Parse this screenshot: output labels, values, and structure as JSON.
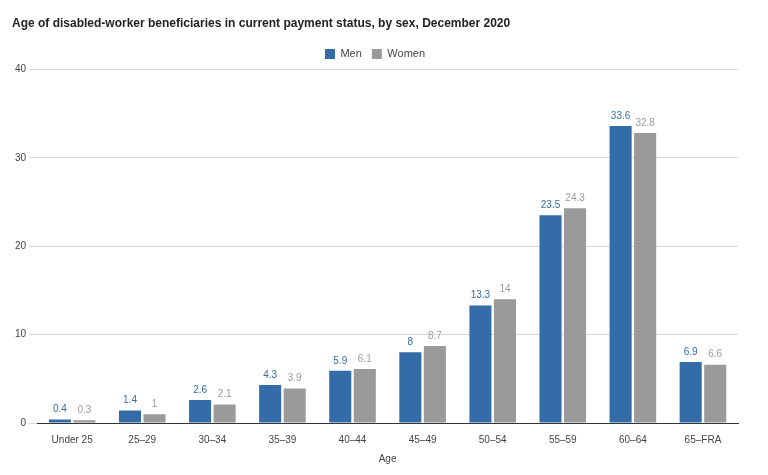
{
  "chart_data": {
    "type": "bar",
    "title": "Age of disabled-worker beneficiaries in current payment status, by sex, December 2020",
    "x_label": "Age",
    "categories": [
      "Under 25",
      "25–29",
      "30–34",
      "35–39",
      "40–44",
      "45–49",
      "50–54",
      "55–59",
      "60–64",
      "65–FRA"
    ],
    "series": [
      {
        "name": "Men",
        "color": "#336ca6",
        "values": [
          0.4,
          1.4,
          2.6,
          4.3,
          5.9,
          8,
          13.3,
          23.5,
          33.6,
          6.9
        ]
      },
      {
        "name": "Women",
        "color": "#9a9a9a",
        "values": [
          0.3,
          1,
          2.1,
          3.9,
          6.1,
          8.7,
          14,
          24.3,
          32.8,
          6.6
        ]
      }
    ],
    "ylim": [
      0,
      40
    ],
    "yticks": [
      0,
      10,
      20,
      30,
      40
    ],
    "grid": true,
    "legend": "top",
    "data_labels": true
  }
}
